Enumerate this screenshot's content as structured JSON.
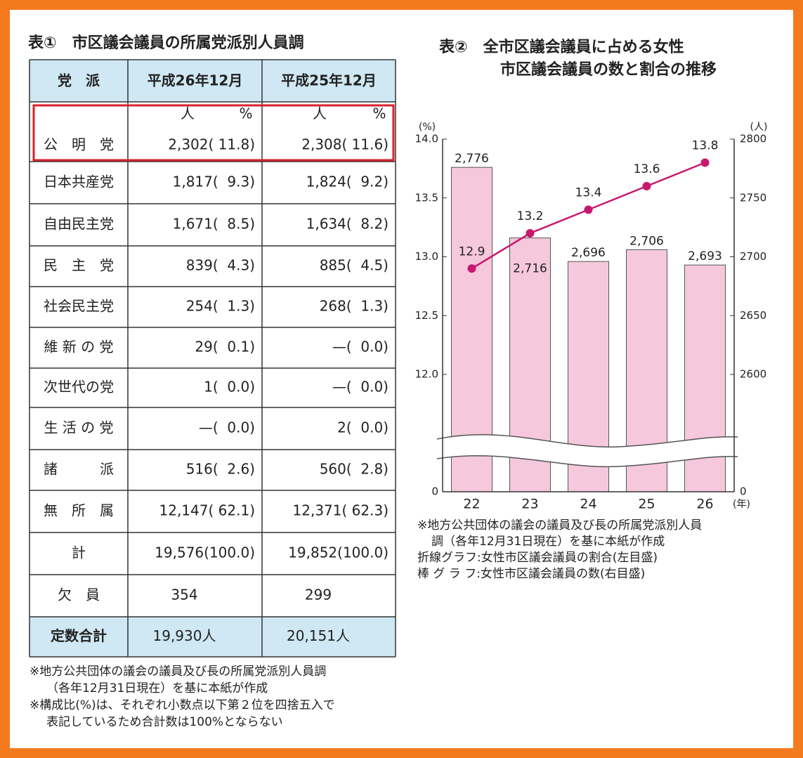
{
  "table": {
    "title": "表①　市区議会議員の所属党派別人員調",
    "header": [
      "党　派",
      "平成26年12月",
      "平成25年12月"
    ],
    "units": [
      "人",
      "%",
      "人",
      "%"
    ],
    "rows": [
      [
        "公　明　党",
        "2,302( 11.8)",
        "2,308( 11.6)"
      ],
      [
        "日本共産党",
        "1,817(  9.3)",
        "1,824(  9.2)"
      ],
      [
        "自由民主党",
        "1,671(  8.5)",
        "1,634(  8.2)"
      ],
      [
        "民　主　党",
        "839(  4.3)",
        "885(  4.5)"
      ],
      [
        "社会民主党",
        "254(  1.3)",
        "268(  1.3)"
      ],
      [
        "維 新 の 党",
        "29(  0.1)",
        "—(  0.0)"
      ],
      [
        "次世代の党",
        "1(  0.0)",
        "—(  0.0)"
      ],
      [
        "生 活 の 党",
        "—(  0.0)",
        "2(  0.0)"
      ],
      [
        "諸　　　派",
        "516(  2.6)",
        "560(  2.8)"
      ],
      [
        "無　所　属",
        "12,147( 62.1)",
        "12,371( 62.3)"
      ],
      [
        "計",
        "19,576(100.0)",
        "19,852(100.0)"
      ],
      [
        "欠　員",
        "354",
        "299"
      ],
      [
        "定数合計",
        "19,930人",
        "20,151人"
      ]
    ],
    "notes": [
      "※地方公共団体の議会の議員及び長の所属党派別人員調",
      "（各年12月31日現在）を基に本紙が作成",
      "※構成比(%)は、それぞれ小数点以下第２位を四捨五入で",
      "表記しているため合計数は100%とならない"
    ]
  },
  "chart_data": {
    "type": "combo",
    "title": [
      "表②　全市区議会議員に占める女性",
      "市区議会議員の数と割合の推移"
    ],
    "y_label": "(%)",
    "y2_label": "(人)",
    "x_label": "(年)",
    "categories": [
      "22",
      "23",
      "24",
      "25",
      "26"
    ],
    "series": [
      {
        "type": "bar",
        "axis": "y2",
        "color": "#f6c8dc",
        "values": [
          2776,
          2716,
          2696,
          2706,
          2693
        ],
        "value_labels": [
          "2,776",
          "2,716",
          "2,696",
          "2,706",
          "2,693"
        ]
      },
      {
        "type": "line",
        "axis": "y",
        "color": "#c8186e",
        "values": [
          12.9,
          13.2,
          13.4,
          13.6,
          13.8
        ]
      }
    ],
    "ylim": [
      0,
      14
    ],
    "ybreak": [
      0,
      12
    ],
    "yticks": [
      0,
      {
        "value": 12,
        "label": "12.0"
      },
      {
        "value": 12.5,
        "label": "12.5"
      },
      {
        "value": 13,
        "label": "13.0"
      },
      {
        "value": 13.5,
        "label": "13.5"
      },
      {
        "value": 14,
        "label": "14.0"
      }
    ],
    "y2lim": [
      0,
      2800
    ],
    "y2break": [
      0,
      2600
    ],
    "y2ticks": [
      0,
      2600,
      2650,
      2700,
      2750,
      2800
    ],
    "notes": [
      "※地方公共団体の議会の議員及び長の所属党派別人員",
      "調（各年12月31日現在）を基に本紙が作成",
      "折線グラフ:女性市区議会議員の割合(左目盛)",
      "棒 グ ラ フ:女性市区議会議員の数(右目盛)"
    ]
  }
}
